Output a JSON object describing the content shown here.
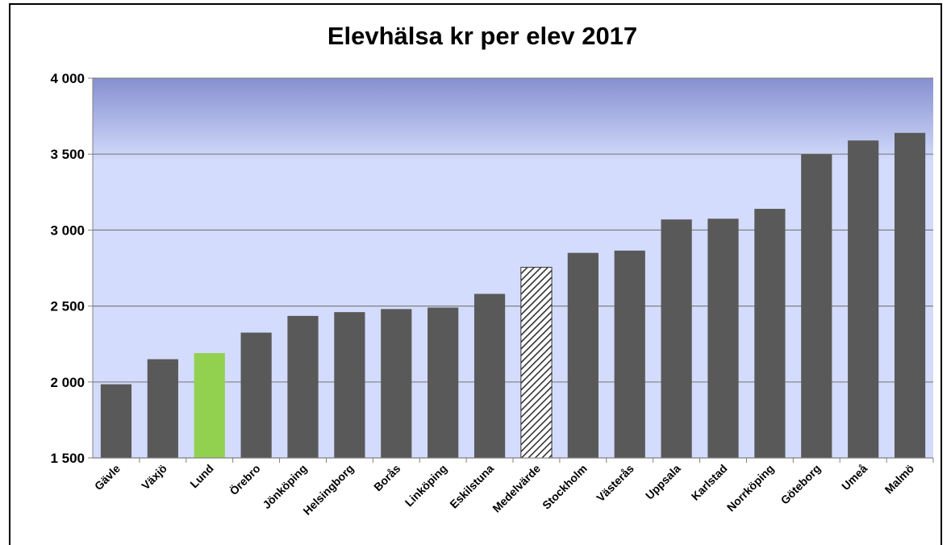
{
  "chart_data": {
    "type": "bar",
    "title": "Elevhälsa kr per elev 2017",
    "categories": [
      "Gävle",
      "Växjö",
      "Lund",
      "Örebro",
      "Jönköping",
      "Helsingborg",
      "Borås",
      "Linköping",
      "Eskilstuna",
      "Medelvärde",
      "Stockholm",
      "Västerås",
      "Uppsala",
      "Karlstad",
      "Norrköping",
      "Göteborg",
      "Umeå",
      "Malmö"
    ],
    "values": [
      1985,
      2150,
      2190,
      2325,
      2435,
      2460,
      2480,
      2490,
      2580,
      2755,
      2850,
      2865,
      3070,
      3075,
      3140,
      3500,
      3590,
      3640
    ],
    "colors": [
      "#595959",
      "#595959",
      "#92d050",
      "#595959",
      "#595959",
      "#595959",
      "#595959",
      "#595959",
      "#595959",
      "#333333",
      "#595959",
      "#595959",
      "#595959",
      "#595959",
      "#595959",
      "#595959",
      "#595959",
      "#595959"
    ],
    "patterns": [
      "solid",
      "solid",
      "solid",
      "solid",
      "solid",
      "solid",
      "solid",
      "solid",
      "solid",
      "hatch",
      "solid",
      "solid",
      "solid",
      "solid",
      "solid",
      "solid",
      "solid",
      "solid"
    ],
    "ylim": [
      1500,
      4000
    ],
    "yticks": [
      {
        "value": 1500,
        "label": "1 500"
      },
      {
        "value": 2000,
        "label": "2 000"
      },
      {
        "value": 2500,
        "label": "2 500"
      },
      {
        "value": 3000,
        "label": "3 000"
      },
      {
        "value": 3500,
        "label": "3 500"
      },
      {
        "value": 4000,
        "label": "4 000"
      }
    ],
    "grid": true
  }
}
